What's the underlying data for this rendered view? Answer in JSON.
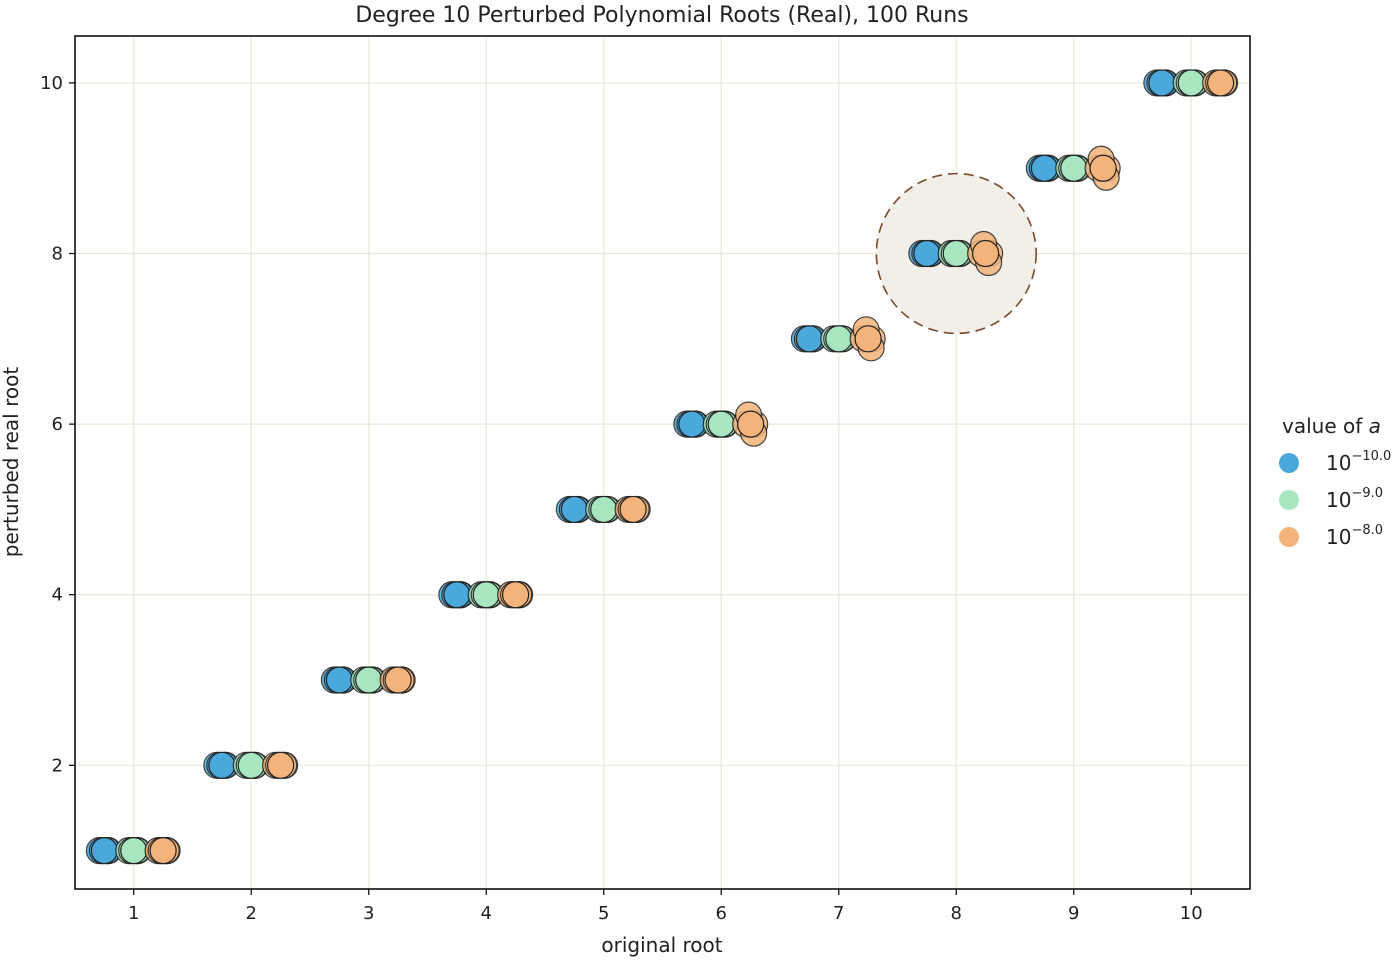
{
  "chart_data": {
    "type": "scatter",
    "title": "Degree 10 Perturbed Polynomial Roots (Real), 100 Runs",
    "xlabel": "original root",
    "ylabel": "perturbed real root",
    "xlim": [
      0.5,
      10.5
    ],
    "ylim": [
      0.55,
      10.55
    ],
    "x_ticks": [
      1,
      2,
      3,
      4,
      5,
      6,
      7,
      8,
      9,
      10
    ],
    "y_ticks": [
      2,
      4,
      6,
      8,
      10
    ],
    "grid": true,
    "legend": {
      "title_text": "value of ",
      "title_italic": "a",
      "placement": "right"
    },
    "jitter": 0.25,
    "series": [
      {
        "name": "10^-10.0",
        "base": "10",
        "exponent": "−10.0",
        "color": "#4aa8db",
        "offset": -0.25,
        "points": [
          {
            "x": 1,
            "y": 1.0
          },
          {
            "x": 2,
            "y": 2.0
          },
          {
            "x": 3,
            "y": 3.0
          },
          {
            "x": 4,
            "y": 4.0
          },
          {
            "x": 5,
            "y": 5.0
          },
          {
            "x": 6,
            "y": 6.0
          },
          {
            "x": 7,
            "y": 7.0
          },
          {
            "x": 8,
            "y": 8.0
          },
          {
            "x": 9,
            "y": 9.0
          },
          {
            "x": 10,
            "y": 10.0
          }
        ]
      },
      {
        "name": "10^-9.0",
        "base": "10",
        "exponent": "−9.0",
        "color": "#a8e6c0",
        "offset": 0.0,
        "points": [
          {
            "x": 1,
            "y": 1.0
          },
          {
            "x": 2,
            "y": 2.0
          },
          {
            "x": 3,
            "y": 3.0
          },
          {
            "x": 4,
            "y": 4.0
          },
          {
            "x": 5,
            "y": 5.0
          },
          {
            "x": 6,
            "y": 6.0
          },
          {
            "x": 7,
            "y": 7.0
          },
          {
            "x": 8,
            "y": 8.0
          },
          {
            "x": 9,
            "y": 9.0
          },
          {
            "x": 10,
            "y": 10.0
          }
        ]
      },
      {
        "name": "10^-8.0",
        "base": "10",
        "exponent": "−8.0",
        "color": "#f3b37a",
        "offset": 0.25,
        "points": [
          {
            "x": 1,
            "y": 1.0
          },
          {
            "x": 2,
            "y": 2.0
          },
          {
            "x": 3,
            "y": 3.0
          },
          {
            "x": 4,
            "y": 4.0
          },
          {
            "x": 5,
            "y": 5.0
          },
          {
            "x": 6,
            "y": 6.0
          },
          {
            "x": 7,
            "y": 7.0
          },
          {
            "x": 8,
            "y": 8.0
          },
          {
            "x": 9,
            "y": 9.0
          },
          {
            "x": 10,
            "y": 10.0
          }
        ]
      }
    ],
    "annotation": {
      "type": "dashed-circle",
      "center": {
        "x": 8,
        "y": 8
      },
      "fill": "#f1efe8",
      "stroke": "#7a4a2a"
    }
  }
}
